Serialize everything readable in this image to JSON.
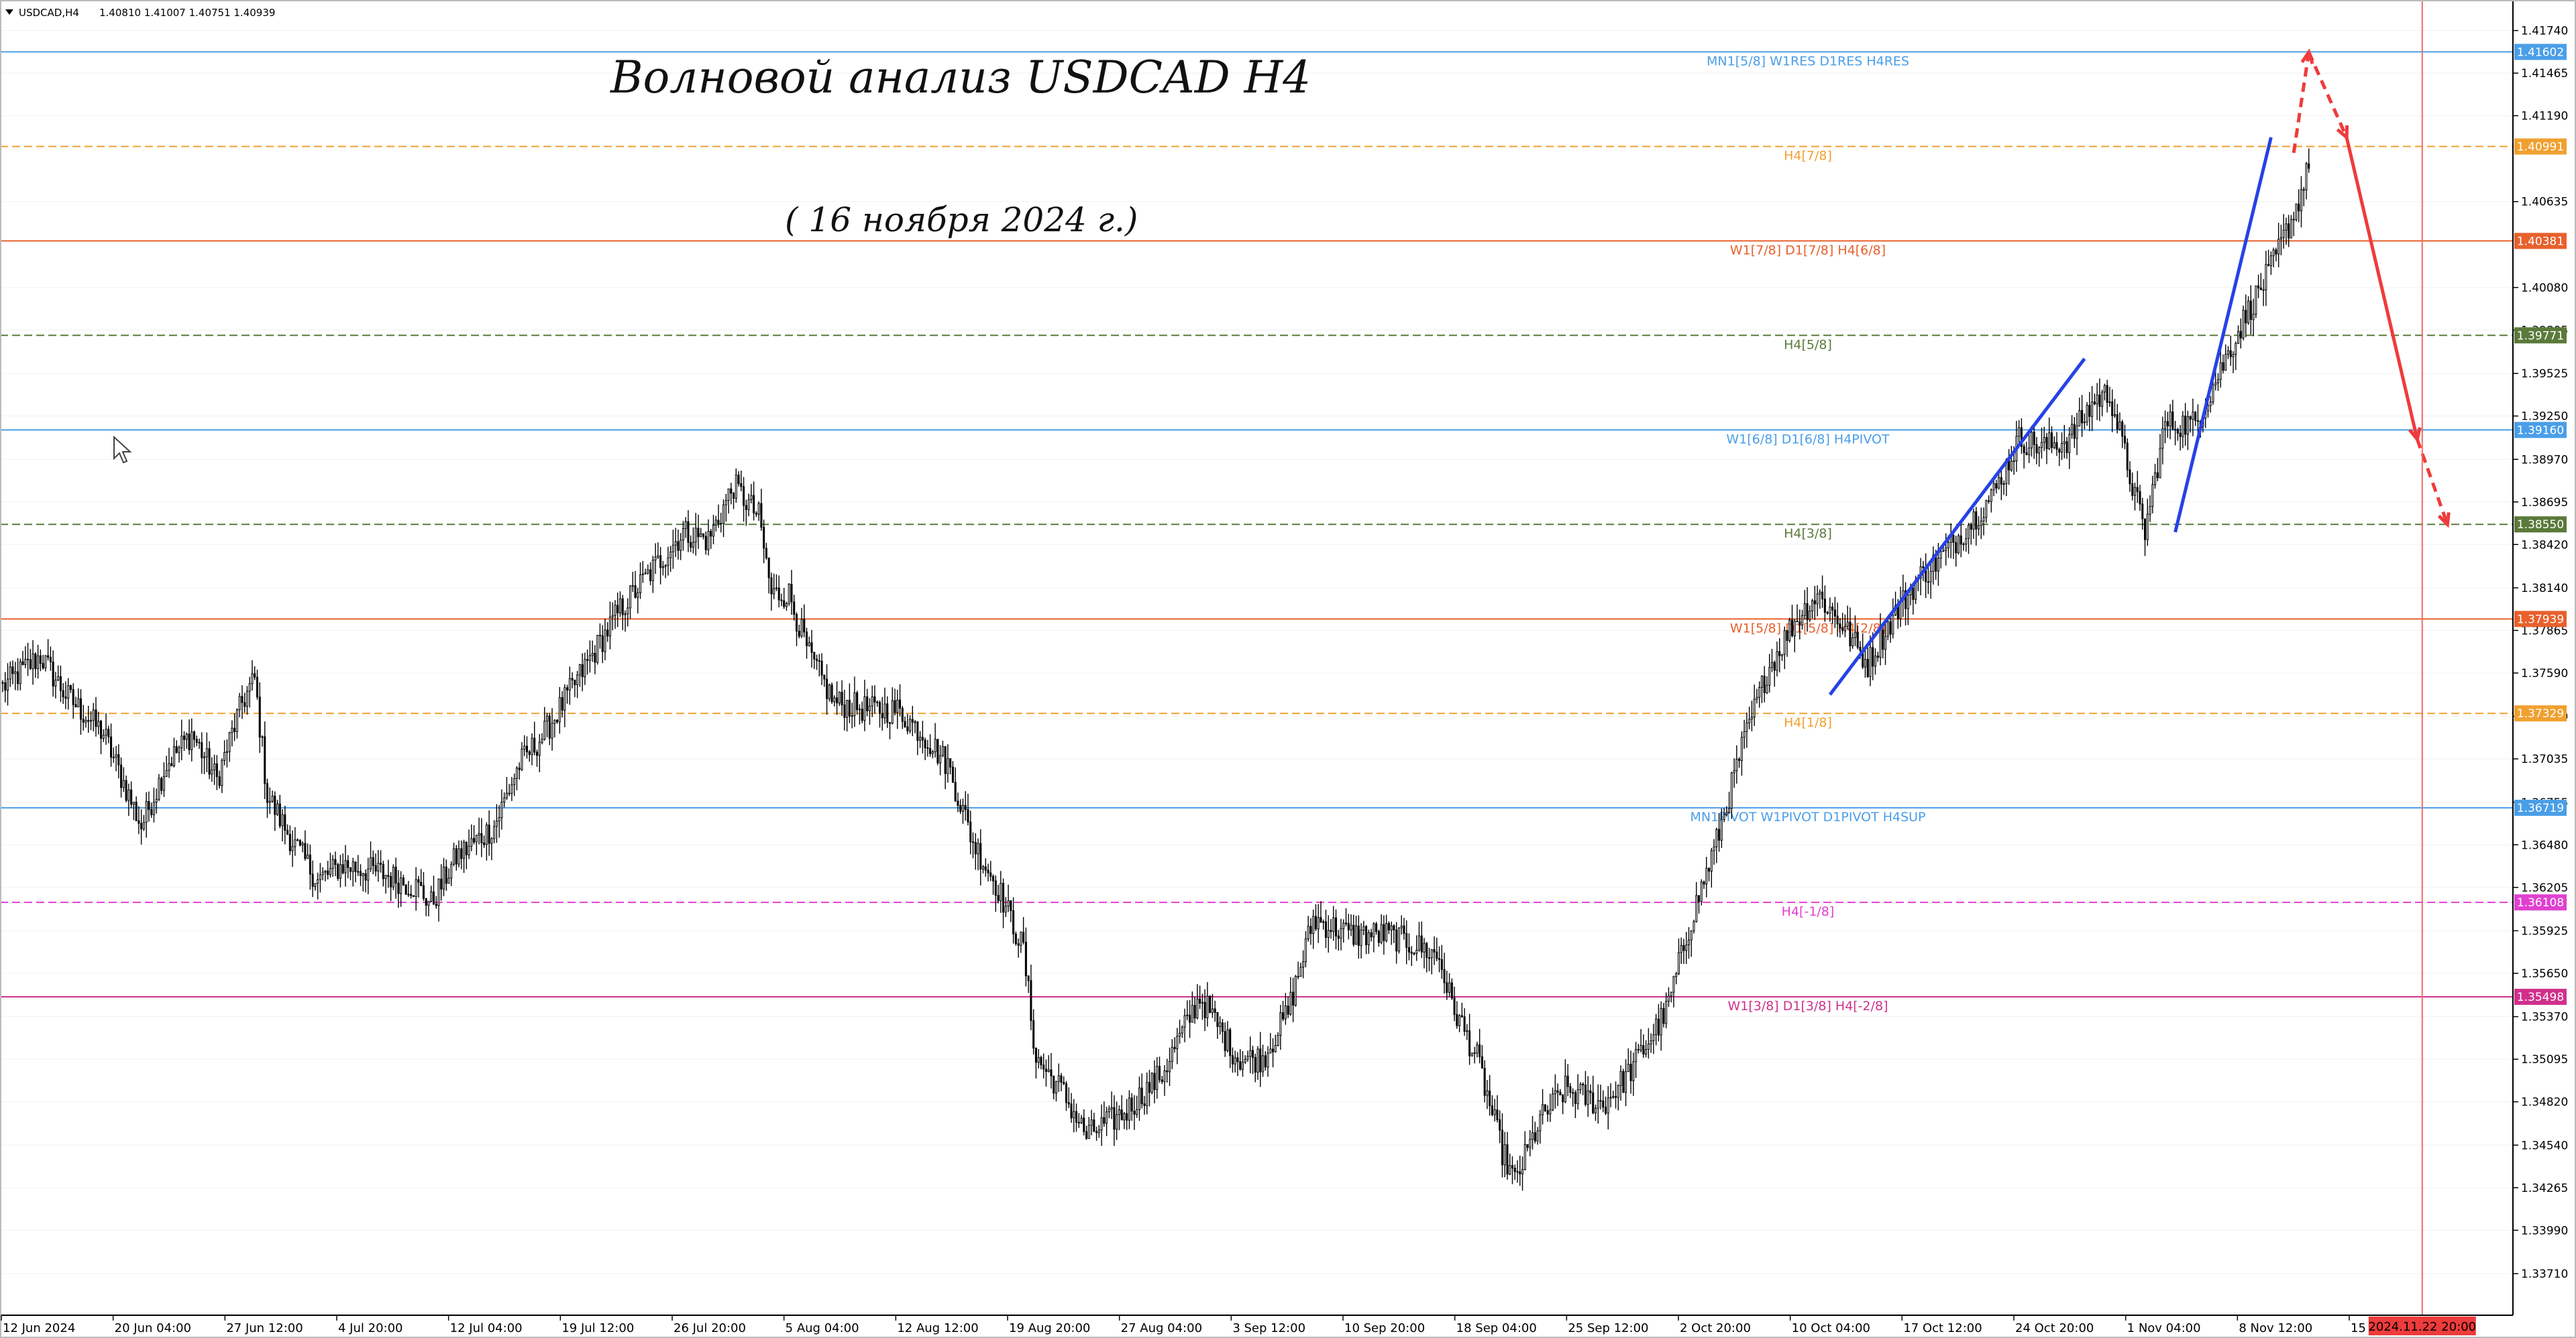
{
  "info": {
    "symbol": "USDCAD,H4",
    "ohlc": "1.40810 1.41007 1.40751 1.40939"
  },
  "annotations": {
    "title": "Волновой анализ USDCAD H4",
    "subtitle": "( 16 ноября 2024 г.)"
  },
  "colors": {
    "candle": "#000000",
    "wave": "#2642e6",
    "forecast": "#ef3b3b",
    "grid": "#eeeeee",
    "vline": "#ee6a6a"
  },
  "chart_data": {
    "type": "candlestick",
    "ylim": [
      1.3345,
      1.4192
    ],
    "y_ticks": [
      "1.41740",
      "1.41465",
      "1.41190",
      "1.40635",
      "1.40080",
      "1.39805",
      "1.39525",
      "1.39250",
      "1.38970",
      "1.38695",
      "1.38420",
      "1.38140",
      "1.37865",
      "1.37590",
      "1.37310",
      "1.37035",
      "1.36755",
      "1.36480",
      "1.36205",
      "1.35925",
      "1.35650",
      "1.35370",
      "1.35095",
      "1.34820",
      "1.34540",
      "1.34265",
      "1.33990",
      "1.33710"
    ],
    "x_ticks": [
      "12 Jun 2024",
      "20 Jun 04:00",
      "27 Jun 12:00",
      "4 Jul 20:00",
      "12 Jul 04:00",
      "19 Jul 12:00",
      "26 Jul 20:00",
      "5 Aug 04:00",
      "12 Aug 12:00",
      "19 Aug 20:00",
      "27 Aug 04:00",
      "3 Sep 12:00",
      "10 Sep 20:00",
      "18 Sep 04:00",
      "25 Sep 12:00",
      "2 Oct 20:00",
      "10 Oct 04:00",
      "17 Oct 12:00",
      "24 Oct 20:00",
      "1 Nov 04:00",
      "8 Nov 12:00",
      "15 Nov 20:00"
    ],
    "cursor_time_label": "2024.11.22 20:00",
    "levels": [
      {
        "price": 1.41602,
        "tag": "1.41602",
        "label": "MN1[5/8] W1RES D1RES H4RES",
        "color": "#4a9ee8",
        "dash": false
      },
      {
        "price": 1.40991,
        "tag": "1.40991",
        "label": "H4[7/8]",
        "color": "#f0a030",
        "dash": true
      },
      {
        "price": 1.40381,
        "tag": "1.40381",
        "label": "W1[7/8] D1[7/8] H4[6/8]",
        "color": "#e8602c",
        "dash": false
      },
      {
        "price": 1.39771,
        "tag": "1.39771",
        "label": "H4[5/8]",
        "color": "#5a7a3a",
        "dash": true
      },
      {
        "price": 1.3916,
        "tag": "1.39160",
        "label": "W1[6/8] D1[6/8] H4PIVOT",
        "color": "#4a9ee8",
        "dash": false
      },
      {
        "price": 1.3855,
        "tag": "1.38550",
        "label": "H4[3/8]",
        "color": "#5a7a3a",
        "dash": true
      },
      {
        "price": 1.37939,
        "tag": "1.37939",
        "label": "W1[5/8] D1[5/8] H4[2/8]",
        "color": "#e8602c",
        "dash": false
      },
      {
        "price": 1.37329,
        "tag": "1.37329",
        "label": "H4[1/8]",
        "color": "#f0a030",
        "dash": true
      },
      {
        "price": 1.36719,
        "tag": "1.36719",
        "label": "MN1PIVOT W1PIVOT D1PIVOT H4SUP",
        "color": "#4a9ee8",
        "dash": false
      },
      {
        "price": 1.36108,
        "tag": "1.36108",
        "label": "H4[-1/8]",
        "color": "#e040d0",
        "dash": true
      },
      {
        "price": 1.35498,
        "tag": "1.35498",
        "label": "W1[3/8] D1[3/8] H4[-2/8]",
        "color": "#d0308c",
        "dash": false
      }
    ],
    "price_path": [
      [
        0,
        1.375
      ],
      [
        15,
        1.377
      ],
      [
        25,
        1.3745
      ],
      [
        40,
        1.372
      ],
      [
        50,
        1.368
      ],
      [
        55,
        1.366
      ],
      [
        65,
        1.37
      ],
      [
        75,
        1.372
      ],
      [
        85,
        1.369
      ],
      [
        95,
        1.374
      ],
      [
        100,
        1.3755
      ],
      [
        105,
        1.368
      ],
      [
        115,
        1.365
      ],
      [
        125,
        1.3625
      ],
      [
        135,
        1.3635
      ],
      [
        150,
        1.363
      ],
      [
        165,
        1.362
      ],
      [
        170,
        1.361
      ],
      [
        180,
        1.364
      ],
      [
        195,
        1.366
      ],
      [
        205,
        1.37
      ],
      [
        215,
        1.372
      ],
      [
        230,
        1.376
      ],
      [
        245,
        1.38
      ],
      [
        260,
        1.383
      ],
      [
        270,
        1.385
      ],
      [
        280,
        1.3845
      ],
      [
        290,
        1.388
      ],
      [
        300,
        1.386
      ],
      [
        305,
        1.381
      ],
      [
        312,
        1.381
      ],
      [
        320,
        1.377
      ],
      [
        330,
        1.374
      ],
      [
        345,
        1.3735
      ],
      [
        355,
        1.3735
      ],
      [
        365,
        1.372
      ],
      [
        375,
        1.37
      ],
      [
        385,
        1.365
      ],
      [
        395,
        1.362
      ],
      [
        405,
        1.358
      ],
      [
        410,
        1.351
      ],
      [
        420,
        1.349
      ],
      [
        430,
        1.346
      ],
      [
        445,
        1.3475
      ],
      [
        460,
        1.35
      ],
      [
        475,
        1.355
      ],
      [
        490,
        1.351
      ],
      [
        500,
        1.351
      ],
      [
        510,
        1.354
      ],
      [
        520,
        1.36
      ],
      [
        535,
        1.359
      ],
      [
        550,
        1.359
      ],
      [
        565,
        1.358
      ],
      [
        570,
        1.3575
      ],
      [
        575,
        1.3545
      ],
      [
        585,
        1.351
      ],
      [
        595,
        1.345
      ],
      [
        600,
        1.343
      ],
      [
        610,
        1.347
      ],
      [
        620,
        1.349
      ],
      [
        635,
        1.348
      ],
      [
        645,
        1.35
      ],
      [
        660,
        1.354
      ],
      [
        670,
        1.36
      ],
      [
        680,
        1.365
      ],
      [
        690,
        1.371
      ],
      [
        700,
        1.376
      ],
      [
        710,
        1.379
      ],
      [
        720,
        1.381
      ],
      [
        730,
        1.379
      ],
      [
        740,
        1.3765
      ],
      [
        750,
        1.3795
      ],
      [
        760,
        1.382
      ],
      [
        770,
        1.3835
      ],
      [
        780,
        1.3855
      ],
      [
        790,
        1.3875
      ],
      [
        800,
        1.391
      ],
      [
        810,
        1.3905
      ],
      [
        820,
        1.391
      ],
      [
        830,
        1.3935
      ],
      [
        836,
        1.394
      ],
      [
        845,
        1.388
      ],
      [
        850,
        1.385
      ],
      [
        858,
        1.392
      ],
      [
        870,
        1.392
      ],
      [
        880,
        1.3955
      ],
      [
        890,
        1.399
      ],
      [
        900,
        1.402
      ],
      [
        910,
        1.406
      ],
      [
        915,
        1.4085
      ]
    ],
    "wave_lines": [
      [
        [
          725,
          1.3745
        ],
        [
          826,
          1.3962
        ]
      ],
      [
        [
          862,
          1.385
        ],
        [
          900,
          1.4105
        ]
      ]
    ],
    "forecast_lines": [
      {
        "points": [
          [
            909,
            1.4095
          ],
          [
            915,
            1.416
          ]
        ],
        "dashed": true
      },
      {
        "points": [
          [
            915,
            1.416
          ],
          [
            930,
            1.4105
          ]
        ],
        "dashed": true
      },
      {
        "points": [
          [
            930,
            1.4105
          ],
          [
            958,
            1.391
          ]
        ],
        "dashed": false
      },
      {
        "points": [
          [
            958,
            1.391
          ],
          [
            970,
            1.3855
          ]
        ],
        "dashed": true
      }
    ],
    "bar_count": 1000,
    "cursor_bar": 960
  }
}
